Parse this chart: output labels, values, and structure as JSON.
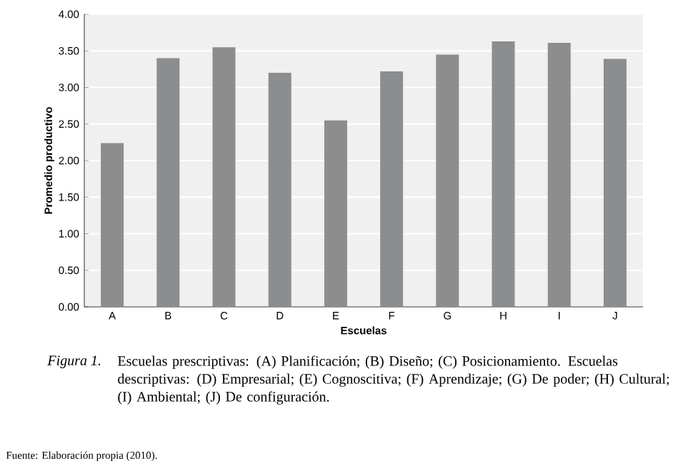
{
  "chart_data": {
    "type": "bar",
    "xlabel": "Escuelas",
    "ylabel": "Promedio productivo",
    "categories": [
      "A",
      "B",
      "C",
      "D",
      "E",
      "F",
      "G",
      "H",
      "I",
      "J"
    ],
    "values": [
      2.24,
      3.4,
      3.55,
      3.2,
      2.55,
      3.22,
      3.45,
      3.63,
      3.61,
      3.39
    ],
    "color": "#8c8d8f",
    "ylim": [
      0,
      4
    ],
    "yticks": [
      {
        "value": 0,
        "label": "0.00"
      },
      {
        "value": 0.5,
        "label": "0.50"
      },
      {
        "value": 1,
        "label": "1.00"
      },
      {
        "value": 1.5,
        "label": "1.50"
      },
      {
        "value": 2,
        "label": "2.00"
      },
      {
        "value": 2.5,
        "label": "2.50"
      },
      {
        "value": 3,
        "label": "3.00"
      },
      {
        "value": 3.5,
        "label": "3.50"
      },
      {
        "value": 4,
        "label": "4.00"
      }
    ],
    "grid": "y",
    "annotations": [
      "*Figura 1.*",
      "Escuelas prescriptivas: (A) Planificación; (B) Diseño; (C) Posicionamiento. Escuelas descriptivas: (D) Empresarial; (E) Cognoscitiva; (F) Aprendizaje; (G) De poder; (H) Cultural; (I) Ambiental; (J) De configuración.",
      "Fuente: Elaboración propia (2010)."
    ]
  }
}
